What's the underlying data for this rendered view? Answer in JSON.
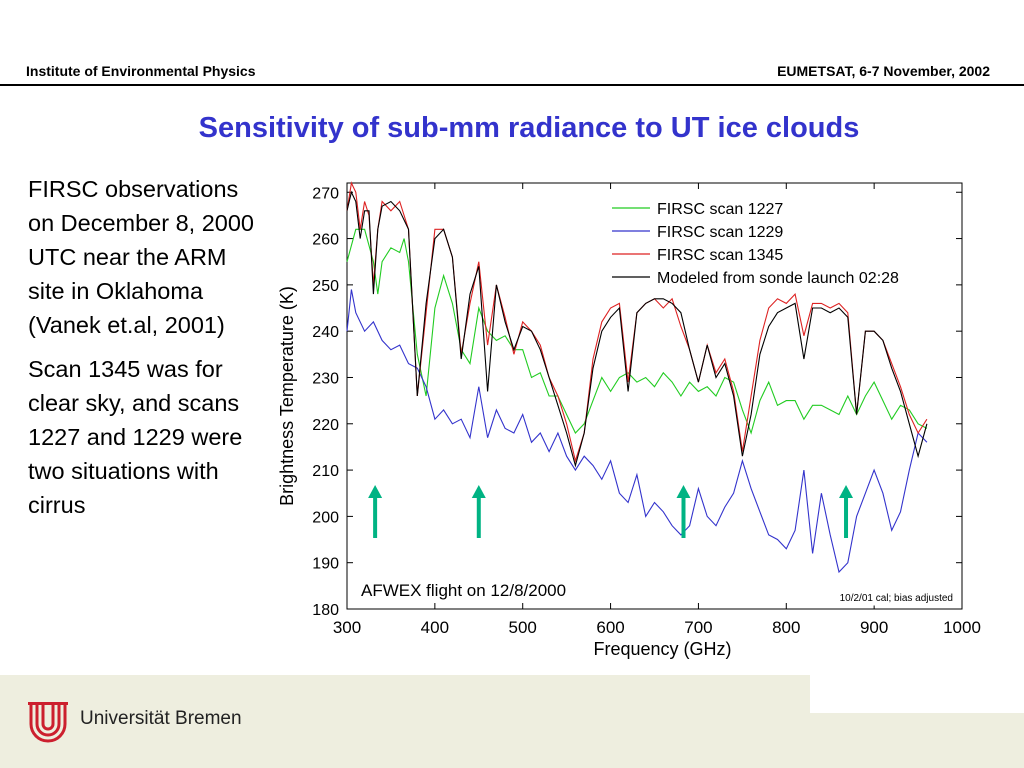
{
  "header": {
    "left": "Institute of Environmental Physics",
    "right": "EUMETSAT, 6-7 November, 2002"
  },
  "slide": {
    "title": "Sensitivity of sub-mm radiance to UT ice clouds",
    "bullet1": "FIRSC observations on December 8, 2000 UTC near the ARM site in Oklahoma (Vanek et.al, 2001)",
    "bullet2": "Scan 1345 was for clear sky, and scans 1227 and 1229 were two situations with cirrus"
  },
  "footer": {
    "university": "Universität Bremen"
  },
  "colors": {
    "title": "#3333cc",
    "arrow": "#00b383"
  },
  "chart_data": {
    "type": "line",
    "xlabel": "Frequency (GHz)",
    "ylabel": "Brightness Temperature (K)",
    "xlim": [
      300,
      1000
    ],
    "ylim": [
      180,
      272
    ],
    "xticks": [
      "300",
      "400",
      "500",
      "600",
      "700",
      "800",
      "900",
      "1000"
    ],
    "yticks": [
      "180",
      "190",
      "200",
      "210",
      "220",
      "230",
      "240",
      "250",
      "260",
      "270"
    ],
    "annotation": "AFWEX flight on 12/8/2000",
    "note": "10/2/01 cal; bias adjusted",
    "arrows_x": [
      332,
      450,
      683,
      868
    ],
    "legend_position": "top-right",
    "series": [
      {
        "name": "FIRSC scan 1227",
        "color": "#22cc22",
        "x": [
          300,
          310,
          320,
          330,
          335,
          340,
          350,
          360,
          365,
          370,
          380,
          390,
          400,
          410,
          420,
          430,
          440,
          450,
          460,
          470,
          480,
          490,
          500,
          510,
          520,
          530,
          540,
          550,
          560,
          570,
          580,
          590,
          600,
          610,
          620,
          630,
          640,
          650,
          660,
          670,
          680,
          690,
          700,
          710,
          720,
          730,
          740,
          750,
          760,
          770,
          780,
          790,
          800,
          810,
          820,
          830,
          840,
          850,
          860,
          870,
          880,
          890,
          900,
          910,
          920,
          930,
          940,
          950,
          960
        ],
        "y": [
          255,
          262,
          262,
          255,
          248,
          255,
          258,
          257,
          260,
          255,
          235,
          226,
          245,
          252,
          246,
          236,
          233,
          245,
          240,
          238,
          239,
          236,
          236,
          230,
          231,
          226,
          226,
          222,
          218,
          220,
          225,
          230,
          227,
          230,
          231,
          229,
          230,
          228,
          231,
          229,
          226,
          229,
          227,
          228,
          226,
          230,
          229,
          223,
          218,
          225,
          229,
          224,
          225,
          225,
          221,
          224,
          224,
          223,
          222,
          226,
          222,
          226,
          229,
          225,
          221,
          224,
          223,
          220,
          219
        ]
      },
      {
        "name": "FIRSC scan 1229",
        "color": "#3333cc",
        "x": [
          300,
          305,
          310,
          320,
          330,
          340,
          350,
          360,
          370,
          380,
          390,
          400,
          410,
          420,
          430,
          440,
          450,
          460,
          470,
          480,
          490,
          500,
          510,
          520,
          530,
          540,
          550,
          560,
          570,
          580,
          590,
          600,
          610,
          620,
          630,
          640,
          650,
          660,
          670,
          680,
          690,
          700,
          710,
          720,
          730,
          740,
          750,
          760,
          770,
          780,
          790,
          800,
          810,
          820,
          830,
          840,
          850,
          860,
          870,
          880,
          890,
          900,
          910,
          920,
          930,
          940,
          950,
          960
        ],
        "y": [
          240,
          249,
          244,
          240,
          242,
          238,
          236,
          237,
          233,
          232,
          228,
          221,
          223,
          220,
          221,
          217,
          228,
          217,
          223,
          219,
          218,
          222,
          216,
          218,
          214,
          218,
          213,
          210,
          213,
          211,
          208,
          212,
          205,
          203,
          209,
          200,
          203,
          201,
          198,
          196,
          198,
          206,
          200,
          198,
          202,
          205,
          212,
          206,
          201,
          196,
          195,
          193,
          197,
          210,
          192,
          205,
          196,
          188,
          190,
          200,
          205,
          210,
          205,
          197,
          201,
          210,
          218,
          216
        ]
      },
      {
        "name": "FIRSC scan 1345",
        "color": "#dd2222",
        "x": [
          300,
          305,
          310,
          315,
          320,
          325,
          330,
          335,
          340,
          350,
          360,
          370,
          380,
          390,
          400,
          410,
          420,
          430,
          440,
          450,
          460,
          470,
          480,
          490,
          500,
          510,
          520,
          530,
          540,
          550,
          560,
          570,
          580,
          590,
          600,
          610,
          620,
          630,
          640,
          650,
          660,
          670,
          680,
          690,
          700,
          710,
          720,
          730,
          740,
          750,
          760,
          770,
          780,
          790,
          800,
          810,
          820,
          830,
          840,
          850,
          860,
          870,
          880,
          890,
          900,
          910,
          920,
          930,
          940,
          950,
          960
        ],
        "y": [
          266,
          272,
          270,
          262,
          268,
          265,
          250,
          262,
          268,
          266,
          268,
          262,
          226,
          244,
          262,
          262,
          256,
          235,
          246,
          255,
          237,
          250,
          243,
          235,
          242,
          240,
          237,
          230,
          226,
          220,
          212,
          218,
          234,
          242,
          245,
          246,
          229,
          244,
          246,
          247,
          245,
          247,
          241,
          236,
          229,
          237,
          231,
          234,
          227,
          214,
          226,
          238,
          245,
          247,
          246,
          248,
          239,
          246,
          246,
          245,
          246,
          244,
          222,
          240,
          240,
          238,
          233,
          228,
          222,
          218,
          221
        ]
      },
      {
        "name": "Modeled from sonde launch 02:28",
        "color": "#000000",
        "x": [
          300,
          305,
          310,
          315,
          320,
          325,
          330,
          335,
          340,
          350,
          360,
          370,
          380,
          390,
          400,
          410,
          420,
          430,
          440,
          450,
          460,
          470,
          480,
          490,
          500,
          510,
          520,
          530,
          540,
          550,
          560,
          570,
          580,
          590,
          600,
          610,
          620,
          630,
          640,
          650,
          660,
          670,
          680,
          690,
          700,
          710,
          720,
          730,
          740,
          750,
          760,
          770,
          780,
          790,
          800,
          810,
          820,
          830,
          840,
          850,
          860,
          870,
          880,
          890,
          900,
          910,
          920,
          930,
          940,
          950,
          960
        ],
        "y": [
          266,
          270,
          268,
          260,
          266,
          266,
          248,
          262,
          267,
          268,
          266,
          262,
          226,
          246,
          260,
          262,
          256,
          234,
          248,
          254,
          227,
          250,
          242,
          236,
          241,
          240,
          236,
          230,
          224,
          218,
          211,
          218,
          232,
          240,
          243,
          245,
          227,
          244,
          246,
          247,
          247,
          246,
          244,
          236,
          229,
          237,
          230,
          233,
          226,
          213,
          222,
          235,
          241,
          244,
          245,
          246,
          234,
          245,
          245,
          244,
          245,
          243,
          222,
          240,
          240,
          238,
          232,
          227,
          220,
          213,
          220
        ]
      }
    ]
  }
}
